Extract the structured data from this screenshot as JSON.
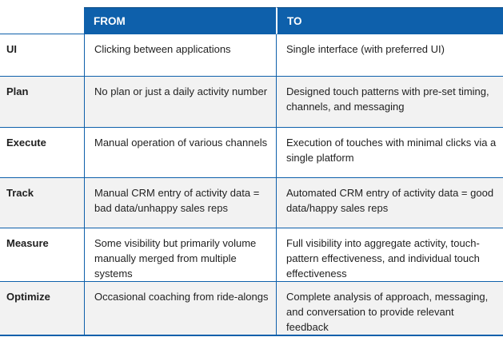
{
  "colors": {
    "header_bg": "#0e60ab",
    "header_top": "#0a4c86",
    "border": "#0e60ab",
    "row_alt_bg": "#f2f2f2",
    "header_text": "#ffffff",
    "text": "#1f1f1f"
  },
  "table": {
    "columns": {
      "label": "",
      "from": "FROM",
      "to": "TO"
    },
    "rows": [
      {
        "label": "UI",
        "from": "Clicking between applications",
        "to": "Single interface (with preferred UI)"
      },
      {
        "label": "Plan",
        "from": "No plan or just a daily activity number",
        "to": "Designed touch patterns with pre-set timing, channels, and messaging"
      },
      {
        "label": "Execute",
        "from": "Manual operation of various channels",
        "to": "Execution of touches with minimal clicks via a single platform"
      },
      {
        "label": "Track",
        "from": "Manual CRM entry of activity data = bad data/unhappy sales reps",
        "to": "Automated CRM entry of activity data = good data/happy sales reps"
      },
      {
        "label": "Measure",
        "from": "Some visibility but primarily volume manually merged from multiple systems",
        "to": "Full visibility into aggregate activity, touch-pattern effectiveness, and individual touch effectiveness"
      },
      {
        "label": "Optimize",
        "from": "Occasional coaching from ride-alongs",
        "to": "Complete analysis of approach, messaging, and conversation to provide relevant feedback"
      }
    ]
  }
}
